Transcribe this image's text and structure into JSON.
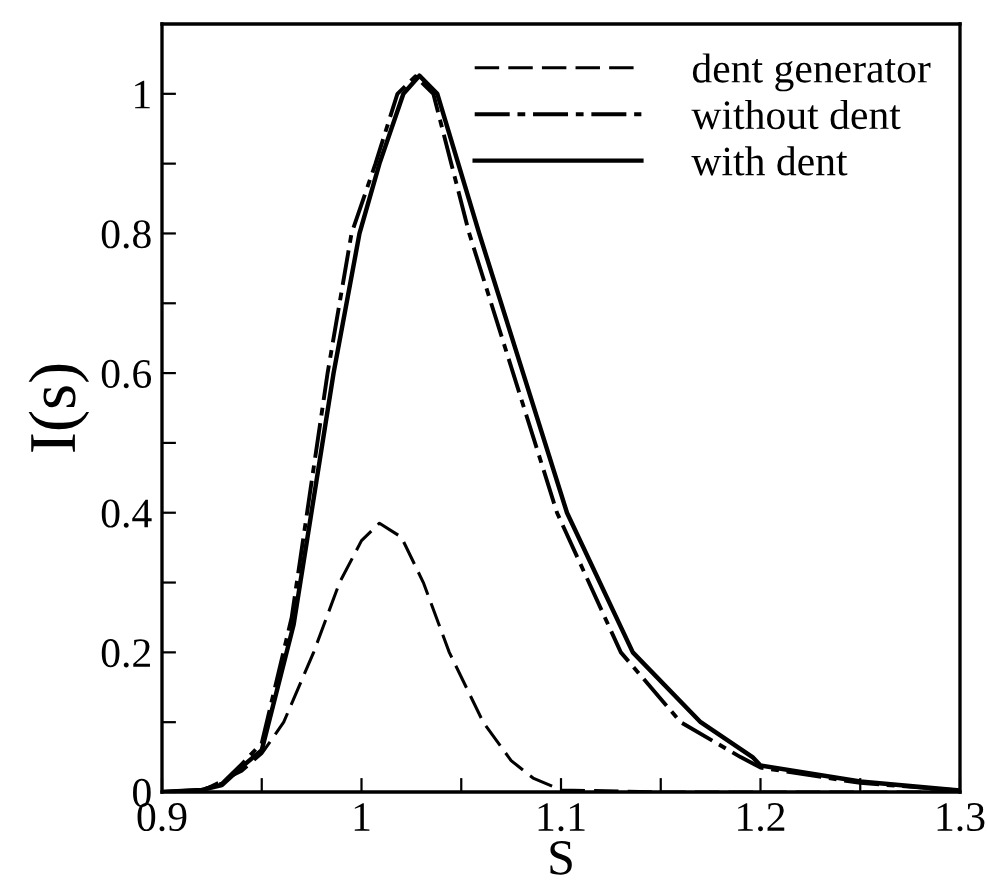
{
  "chart_data": {
    "type": "line",
    "xlabel": "S",
    "ylabel": "I(s)",
    "xlim": [
      0.9,
      1.3
    ],
    "ylim": [
      0,
      1.1
    ],
    "xticks": [
      0.9,
      {
        "value": 0.95,
        "label": null
      },
      1,
      {
        "value": 1.05,
        "label": null
      },
      1.1,
      {
        "value": 1.15,
        "label": null
      },
      1.2,
      {
        "value": 1.25,
        "label": null
      },
      1.3
    ],
    "yticks": [
      0,
      {
        "value": 0.1,
        "label": null
      },
      0.2,
      {
        "value": 0.3,
        "label": null
      },
      0.4,
      {
        "value": 0.5,
        "label": null
      },
      0.6,
      {
        "value": 0.7,
        "label": null
      },
      0.8,
      {
        "value": 0.9,
        "label": null
      },
      1
    ],
    "grid": false,
    "legend": "top right",
    "marker": "none",
    "series": [
      {
        "name": "dent generator",
        "color": "#000000",
        "line_style": "dashed",
        "x": [
          0.9,
          0.92,
          0.94,
          0.95,
          0.961,
          0.976,
          0.989,
          1.0,
          1.009,
          1.02,
          1.031,
          1.044,
          1.061,
          1.075,
          1.086,
          1.1,
          1.15,
          1.3
        ],
        "values": [
          0,
          0.002,
          0.03,
          0.055,
          0.1,
          0.2,
          0.3,
          0.36,
          0.385,
          0.365,
          0.3,
          0.2,
          0.1,
          0.045,
          0.02,
          0.003,
          0,
          0
        ]
      },
      {
        "name": "without dent",
        "color": "#000000",
        "line_style": "dashdot",
        "x": [
          0.9,
          0.92,
          0.93,
          0.94,
          0.95,
          0.965,
          0.983,
          0.995,
          1.007,
          1.018,
          1.027,
          1.036,
          1.054,
          1.076,
          1.098,
          1.13,
          1.16,
          1.19,
          1.2,
          1.25,
          1.3
        ],
        "values": [
          0,
          0.003,
          0.012,
          0.04,
          0.07,
          0.25,
          0.6,
          0.8,
          0.9,
          1.0,
          1.025,
          1.0,
          0.8,
          0.6,
          0.4,
          0.2,
          0.1,
          0.05,
          0.035,
          0.013,
          0.002
        ]
      },
      {
        "name": "with dent",
        "color": "#000000",
        "line_style": "solid",
        "x": [
          0.9,
          0.92,
          0.93,
          0.94,
          0.95,
          0.966,
          0.986,
          0.999,
          1.009,
          1.021,
          1.029,
          1.038,
          1.059,
          1.081,
          1.103,
          1.136,
          1.17,
          1.196,
          1.2,
          1.25,
          1.3
        ],
        "values": [
          0,
          0.003,
          0.01,
          0.036,
          0.06,
          0.24,
          0.6,
          0.8,
          0.9,
          1.0,
          1.026,
          1.0,
          0.8,
          0.6,
          0.4,
          0.2,
          0.1,
          0.05,
          0.038,
          0.015,
          0.002
        ]
      }
    ]
  }
}
